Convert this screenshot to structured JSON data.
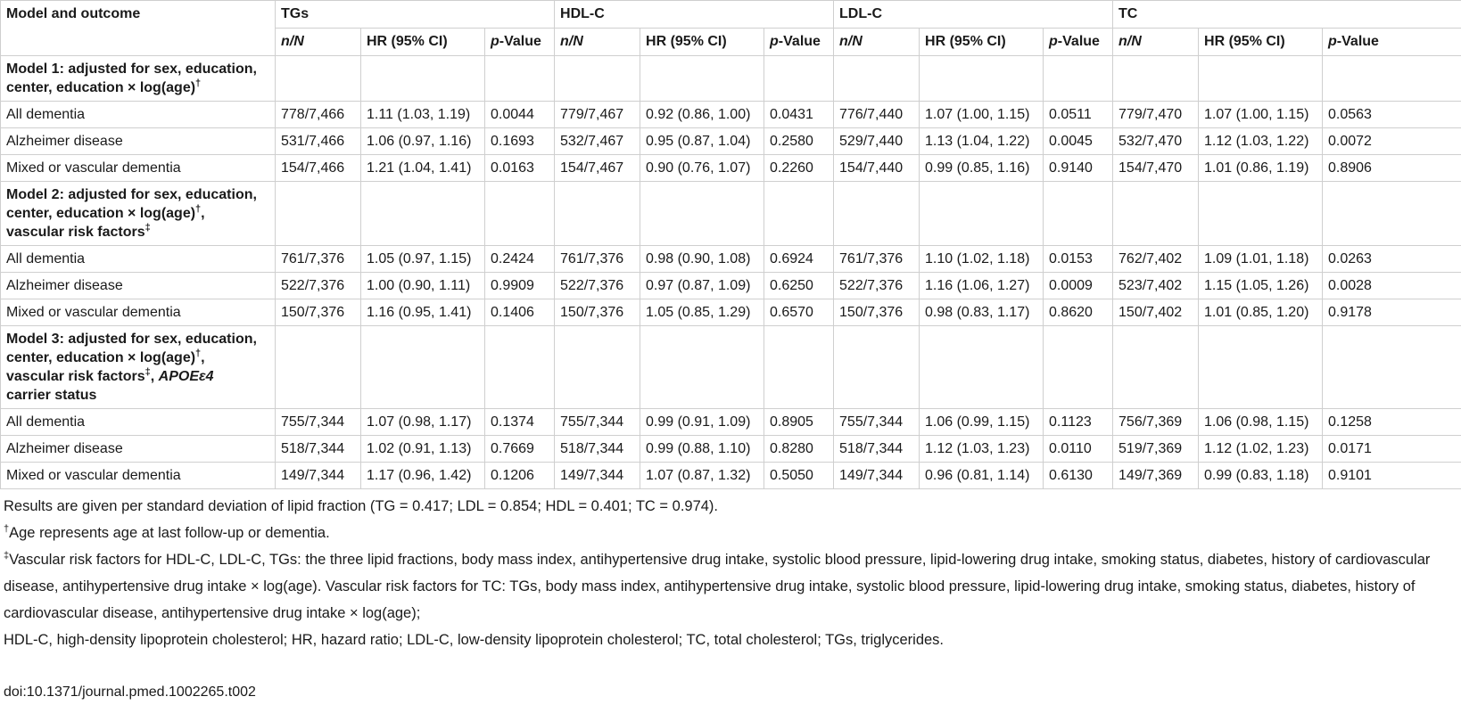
{
  "header": {
    "model_label": "Model and outcome",
    "groups": [
      "TGs",
      "HDL-C",
      "LDL-C",
      "TC"
    ],
    "subcols": {
      "n": "n/N",
      "hr": "HR (95% CI)",
      "p_italic": "p",
      "p_rest": "-Value"
    }
  },
  "models": [
    {
      "label_lines": [
        {
          "text": "Model 1: adjusted for sex, education,"
        },
        {
          "text": "center, education × log(age)",
          "sup": "†"
        }
      ],
      "rows": [
        {
          "outcome": "All dementia",
          "cells": [
            [
              "778/7,466",
              "1.11 (1.03, 1.19)",
              "0.0044"
            ],
            [
              "779/7,467",
              "0.92 (0.86, 1.00)",
              "0.0431"
            ],
            [
              "776/7,440",
              "1.07 (1.00, 1.15)",
              "0.0511"
            ],
            [
              "779/7,470",
              "1.07 (1.00, 1.15)",
              "0.0563"
            ]
          ]
        },
        {
          "outcome": "Alzheimer disease",
          "cells": [
            [
              "531/7,466",
              "1.06 (0.97, 1.16)",
              "0.1693"
            ],
            [
              "532/7,467",
              "0.95 (0.87, 1.04)",
              "0.2580"
            ],
            [
              "529/7,440",
              "1.13 (1.04, 1.22)",
              "0.0045"
            ],
            [
              "532/7,470",
              "1.12 (1.03, 1.22)",
              "0.0072"
            ]
          ]
        },
        {
          "outcome": "Mixed or vascular dementia",
          "cells": [
            [
              "154/7,466",
              "1.21 (1.04, 1.41)",
              "0.0163"
            ],
            [
              "154/7,467",
              "0.90 (0.76, 1.07)",
              "0.2260"
            ],
            [
              "154/7,440",
              "0.99 (0.85, 1.16)",
              "0.9140"
            ],
            [
              "154/7,470",
              "1.01 (0.86, 1.19)",
              "0.8906"
            ]
          ]
        }
      ]
    },
    {
      "label_lines": [
        {
          "text": "Model 2: adjusted for sex, education,"
        },
        {
          "text": "center, education × log(age)",
          "sup": "†",
          "after": ","
        },
        {
          "text": "vascular risk factors",
          "sup": "‡"
        }
      ],
      "rows": [
        {
          "outcome": "All dementia",
          "cells": [
            [
              "761/7,376",
              "1.05 (0.97, 1.15)",
              "0.2424"
            ],
            [
              "761/7,376",
              "0.98 (0.90, 1.08)",
              "0.6924"
            ],
            [
              "761/7,376",
              "1.10 (1.02, 1.18)",
              "0.0153"
            ],
            [
              "762/7,402",
              "1.09 (1.01, 1.18)",
              "0.0263"
            ]
          ]
        },
        {
          "outcome": "Alzheimer disease",
          "cells": [
            [
              "522/7,376",
              "1.00 (0.90, 1.11)",
              "0.9909"
            ],
            [
              "522/7,376",
              "0.97 (0.87, 1.09)",
              "0.6250"
            ],
            [
              "522/7,376",
              "1.16 (1.06, 1.27)",
              "0.0009"
            ],
            [
              "523/7,402",
              "1.15 (1.05, 1.26)",
              "0.0028"
            ]
          ]
        },
        {
          "outcome": "Mixed or vascular dementia",
          "cells": [
            [
              "150/7,376",
              "1.16 (0.95, 1.41)",
              "0.1406"
            ],
            [
              "150/7,376",
              "1.05 (0.85, 1.29)",
              "0.6570"
            ],
            [
              "150/7,376",
              "0.98 (0.83, 1.17)",
              "0.8620"
            ],
            [
              "150/7,402",
              "1.01 (0.85, 1.20)",
              "0.9178"
            ]
          ]
        }
      ]
    },
    {
      "label_lines": [
        {
          "text": "Model 3: adjusted for sex, education,"
        },
        {
          "text": "center, education × log(age)",
          "sup": "†",
          "after": ","
        },
        {
          "text": "vascular risk factors",
          "sup": "‡",
          "after": ", ",
          "ital": "APOEε4"
        },
        {
          "text": "carrier status"
        }
      ],
      "rows": [
        {
          "outcome": "All dementia",
          "cells": [
            [
              "755/7,344",
              "1.07 (0.98, 1.17)",
              "0.1374"
            ],
            [
              "755/7,344",
              "0.99 (0.91, 1.09)",
              "0.8905"
            ],
            [
              "755/7,344",
              "1.06 (0.99, 1.15)",
              "0.1123"
            ],
            [
              "756/7,369",
              "1.06 (0.98, 1.15)",
              "0.1258"
            ]
          ]
        },
        {
          "outcome": "Alzheimer disease",
          "cells": [
            [
              "518/7,344",
              "1.02 (0.91, 1.13)",
              "0.7669"
            ],
            [
              "518/7,344",
              "0.99 (0.88, 1.10)",
              "0.8280"
            ],
            [
              "518/7,344",
              "1.12 (1.03, 1.23)",
              "0.0110"
            ],
            [
              "519/7,369",
              "1.12 (1.02, 1.23)",
              "0.0171"
            ]
          ]
        },
        {
          "outcome": "Mixed or vascular dementia",
          "cells": [
            [
              "149/7,344",
              "1.17 (0.96, 1.42)",
              "0.1206"
            ],
            [
              "149/7,344",
              "1.07 (0.87, 1.32)",
              "0.5050"
            ],
            [
              "149/7,344",
              "0.96 (0.81, 1.14)",
              "0.6130"
            ],
            [
              "149/7,369",
              "0.99 (0.83, 1.18)",
              "0.9101"
            ]
          ]
        }
      ]
    }
  ],
  "footnotes": {
    "results": "Results are given per standard deviation of lipid fraction (TG = 0.417; LDL = 0.854; HDL = 0.401; TC = 0.974).",
    "dagger_mark": "†",
    "dagger_text": "Age represents age at last follow-up or dementia.",
    "ddagger_mark": "‡",
    "ddagger_text": "Vascular risk factors for HDL-C, LDL-C, TGs: the three lipid fractions, body mass index, antihypertensive drug intake, systolic blood pressure, lipid-lowering drug intake, smoking status, diabetes, history of cardiovascular disease, antihypertensive drug intake × log(age). Vascular risk factors for TC: TGs, body mass index, antihypertensive drug intake, systolic blood pressure, lipid-lowering drug intake, smoking status, diabetes, history of cardiovascular disease, antihypertensive drug intake × log(age);",
    "abbreviations": "HDL-C, high-density lipoprotein cholesterol; HR, hazard ratio; LDL-C, low-density lipoprotein cholesterol; TC, total cholesterol; TGs, triglycerides."
  },
  "doi": "doi:10.1371/journal.pmed.1002265.t002"
}
